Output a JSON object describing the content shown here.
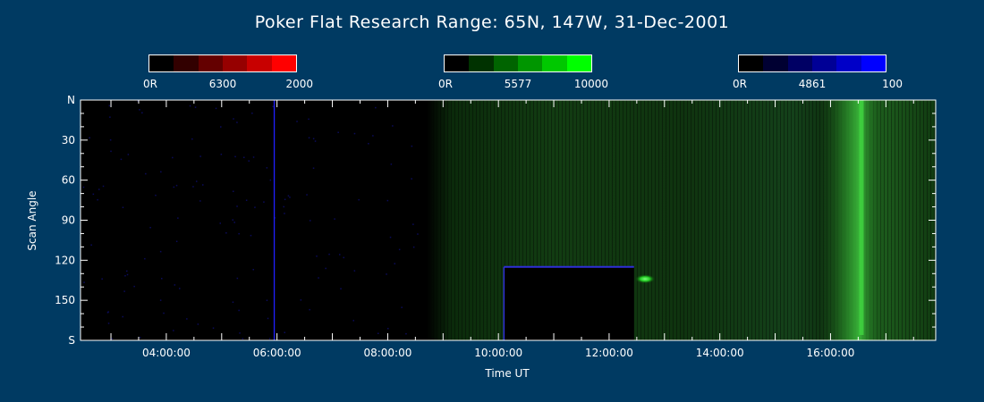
{
  "title": "Poker Flat Research Range: 65N, 147W, 31-Dec-2001",
  "colorbars": [
    {
      "name": "red",
      "labels": [
        "0R",
        "6300",
        "2000"
      ],
      "colors": [
        "#000000",
        "#320000",
        "#640000",
        "#960000",
        "#c80000",
        "#ff0000"
      ]
    },
    {
      "name": "green",
      "labels": [
        "0R",
        "5577",
        "10000"
      ],
      "colors": [
        "#000000",
        "#003200",
        "#006400",
        "#009600",
        "#00c800",
        "#00ff00"
      ]
    },
    {
      "name": "blue",
      "labels": [
        "0R",
        "4861",
        "100"
      ],
      "colors": [
        "#000000",
        "#000032",
        "#000064",
        "#000096",
        "#0000c8",
        "#0000ff"
      ]
    }
  ],
  "chart_data": {
    "type": "heatmap",
    "title": "Poker Flat Research Range: 65N, 147W, 31-Dec-2001",
    "xlabel": "Time UT",
    "ylabel": "Scan Angle",
    "x_ticks": [
      "04:00:00",
      "06:00:00",
      "08:00:00",
      "10:00:00",
      "12:00:00",
      "14:00:00",
      "16:00:00"
    ],
    "x_tick_hours": [
      4,
      6,
      8,
      10,
      12,
      14,
      16
    ],
    "xlim_hours": [
      2.45,
      17.9
    ],
    "y_ticks": [
      "N",
      "30",
      "60",
      "90",
      "120",
      "150",
      "S"
    ],
    "y_tick_values": [
      0,
      30,
      60,
      90,
      120,
      150,
      180
    ],
    "ylim": [
      0,
      180
    ],
    "channels": [
      "6300",
      "5577",
      "4861"
    ],
    "features": [
      {
        "channel": "4861",
        "kind": "vertical-line",
        "hour": 5.95
      },
      {
        "channel": "5577",
        "kind": "emission-region",
        "hour_start": 8.7,
        "hour_end": 17.9
      },
      {
        "channel": "none",
        "kind": "no-data-block",
        "hour_start": 10.1,
        "hour_end": 12.45,
        "angle_start": 125,
        "angle_end": 180
      },
      {
        "channel": "5577",
        "kind": "bright-spot",
        "hour": 12.65,
        "angle": 134
      },
      {
        "channel": "5577",
        "kind": "bright-band",
        "hour_start": 15.8,
        "hour_end": 17.0,
        "peak_hour": 16.55
      }
    ]
  }
}
